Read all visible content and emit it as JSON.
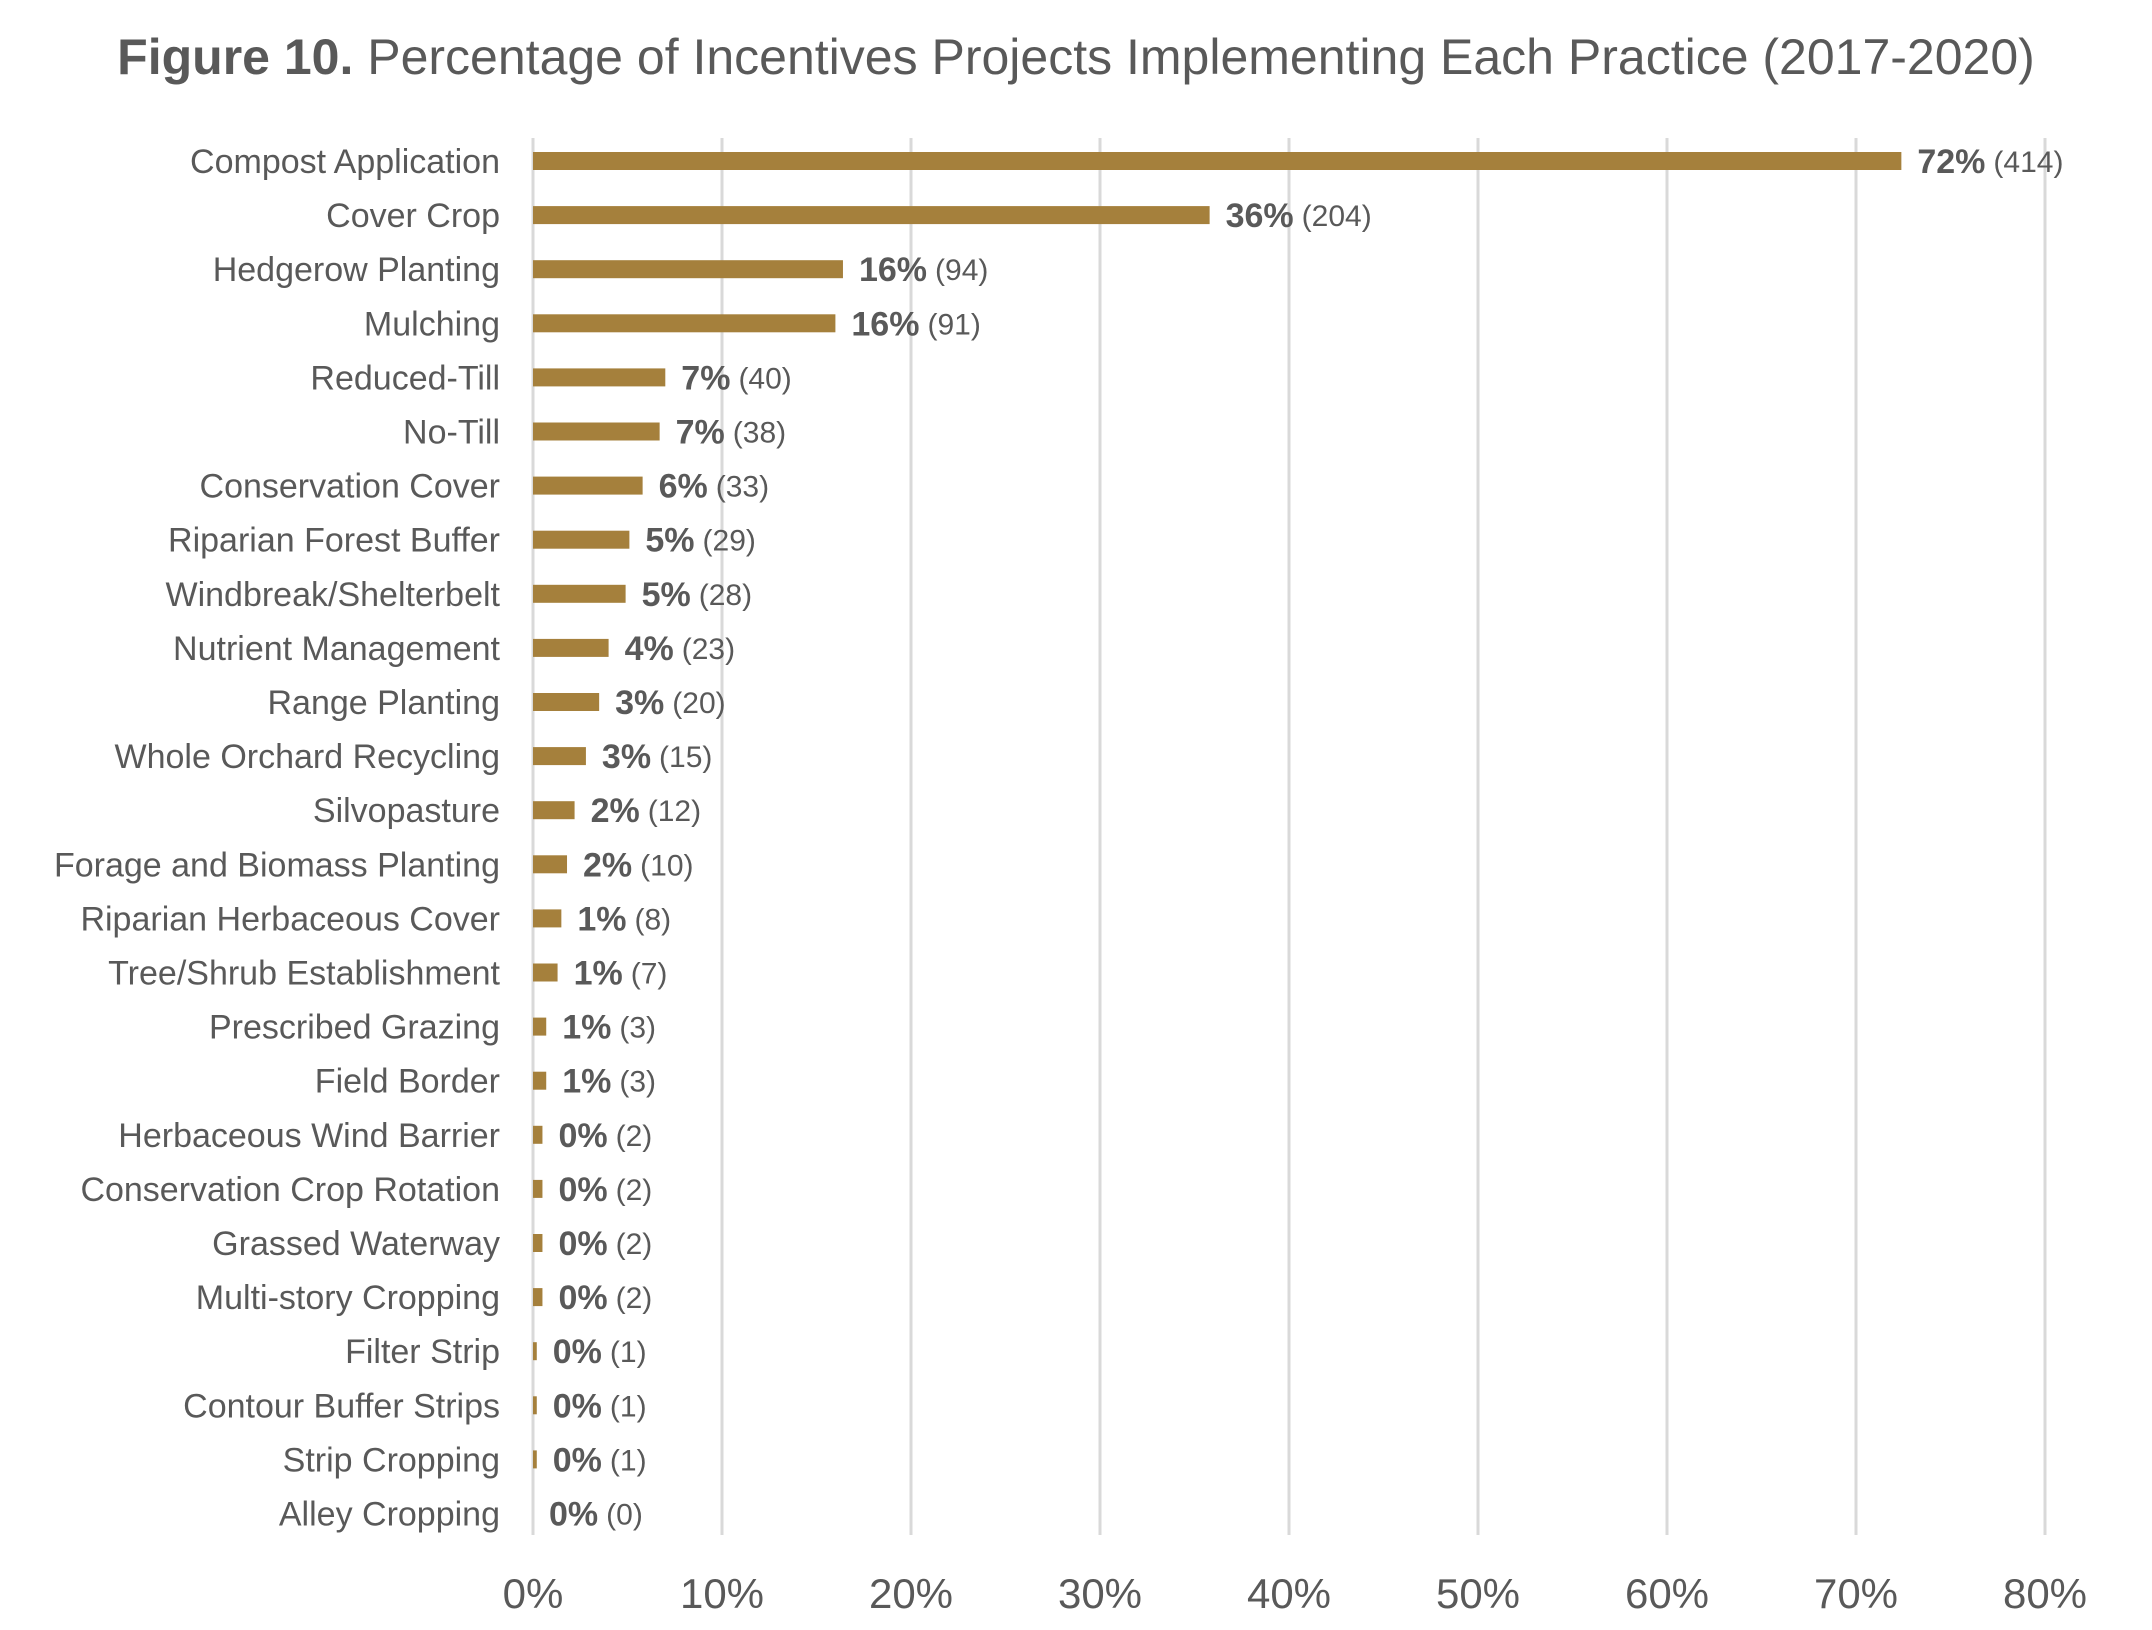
{
  "chart_data": {
    "type": "bar",
    "orientation": "horizontal",
    "title_bold": "Figure 10.",
    "title_rest": " Percentage of Incentives Projects Implementing Each Practice (2017-2020)",
    "xlabel": "",
    "ylabel": "",
    "xlim": [
      0,
      80
    ],
    "x_ticks": [
      0,
      10,
      20,
      30,
      40,
      50,
      60,
      70,
      80
    ],
    "x_tick_labels": [
      "0%",
      "10%",
      "20%",
      "30%",
      "40%",
      "50%",
      "60%",
      "70%",
      "80%"
    ],
    "grid": "vertical",
    "legend": "none",
    "bar_color": "#a5803c",
    "categories": [
      "Compost Application",
      "Cover Crop",
      "Hedgerow Planting",
      "Mulching",
      "Reduced-Till",
      "No-Till",
      "Conservation Cover",
      "Riparian Forest Buffer",
      "Windbreak/Shelterbelt",
      "Nutrient Management",
      "Range Planting",
      "Whole Orchard Recycling",
      "Silvopasture",
      "Forage and Biomass Planting",
      "Riparian Herbaceous Cover",
      "Tree/Shrub Establishment",
      "Prescribed Grazing",
      "Field Border",
      "Herbaceous Wind Barrier",
      "Conservation Crop Rotation",
      "Grassed Waterway",
      "Multi-story Cropping",
      "Filter Strip",
      "Contour Buffer Strips",
      "Strip Cropping",
      "Alley Cropping"
    ],
    "values": [
      72.4,
      35.8,
      16.4,
      16.0,
      7.0,
      6.7,
      5.8,
      5.1,
      4.9,
      4.0,
      3.5,
      2.8,
      2.2,
      1.8,
      1.5,
      1.3,
      0.7,
      0.7,
      0.5,
      0.5,
      0.5,
      0.5,
      0.2,
      0.2,
      0.2,
      0.0
    ],
    "value_labels": [
      "72%",
      "36%",
      "16%",
      "16%",
      "7%",
      "7%",
      "6%",
      "5%",
      "5%",
      "4%",
      "3%",
      "3%",
      "2%",
      "2%",
      "1%",
      "1%",
      "1%",
      "1%",
      "0%",
      "0%",
      "0%",
      "0%",
      "0%",
      "0%",
      "0%",
      "0%"
    ],
    "count_labels": [
      "(414)",
      "(204)",
      "(94)",
      "(91)",
      "(40)",
      "(38)",
      "(33)",
      "(29)",
      "(28)",
      "(23)",
      "(20)",
      "(15)",
      "(12)",
      "(10)",
      "(8)",
      "(7)",
      "(3)",
      "(3)",
      "(2)",
      "(2)",
      "(2)",
      "(2)",
      "(1)",
      "(1)",
      "(1)",
      "(0)"
    ]
  }
}
